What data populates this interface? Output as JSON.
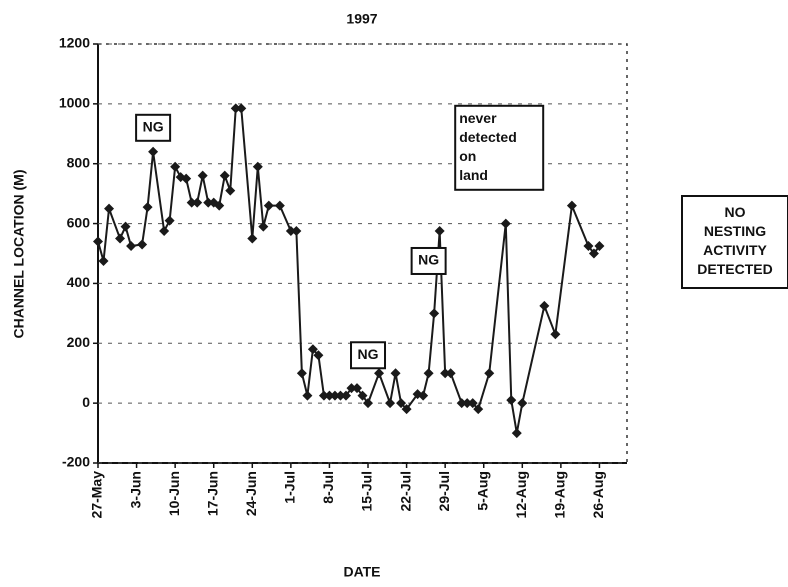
{
  "chart_data": {
    "type": "line",
    "title": "1997",
    "x_label": "DATE",
    "y_label": "CHANNEL LOCATION (M)",
    "x": [
      "27-May",
      "28-May",
      "29-May",
      "31-May",
      "1-Jun",
      "2-Jun",
      "4-Jun",
      "5-Jun",
      "6-Jun",
      "8-Jun",
      "9-Jun",
      "10-Jun",
      "11-Jun",
      "12-Jun",
      "13-Jun",
      "14-Jun",
      "15-Jun",
      "16-Jun",
      "17-Jun",
      "18-Jun",
      "19-Jun",
      "20-Jun",
      "21-Jun",
      "22-Jun",
      "24-Jun",
      "25-Jun",
      "26-Jun",
      "27-Jun",
      "29-Jun",
      "1-Jul",
      "2-Jul",
      "3-Jul",
      "4-Jul",
      "5-Jul",
      "6-Jul",
      "7-Jul",
      "8-Jul",
      "9-Jul",
      "10-Jul",
      "11-Jul",
      "12-Jul",
      "13-Jul",
      "14-Jul",
      "15-Jul",
      "17-Jul",
      "19-Jul",
      "20-Jul",
      "21-Jul",
      "22-Jul",
      "24-Jul",
      "25-Jul",
      "26-Jul",
      "27-Jul",
      "28-Jul",
      "29-Jul",
      "30-Jul",
      "1-Aug",
      "2-Aug",
      "3-Aug",
      "4-Aug",
      "6-Aug",
      "9-Aug",
      "10-Aug",
      "11-Aug",
      "12-Aug",
      "16-Aug",
      "18-Aug",
      "21-Aug",
      "24-Aug",
      "25-Aug",
      "26-Aug"
    ],
    "series": [
      {
        "color": "#1a1a1a",
        "values": [
          540,
          475,
          650,
          550,
          590,
          525,
          530,
          655,
          840,
          575,
          610,
          790,
          755,
          750,
          670,
          670,
          760,
          670,
          670,
          660,
          760,
          710,
          985,
          985,
          550,
          790,
          590,
          660,
          660,
          575,
          575,
          100,
          25,
          180,
          160,
          25,
          25,
          25,
          25,
          25,
          50,
          50,
          25,
          0,
          100,
          0,
          100,
          0,
          -20,
          30,
          25,
          100,
          300,
          575,
          100,
          100,
          0,
          0,
          0,
          -20,
          100,
          600,
          10,
          -100,
          0,
          325,
          230,
          660,
          525,
          500,
          525
        ]
      }
    ],
    "xlim": [
      "27-May",
      "31-Aug"
    ],
    "xticks": [
      "27-May",
      "3-Jun",
      "10-Jun",
      "17-Jun",
      "24-Jun",
      "1-Jul",
      "8-Jul",
      "15-Jul",
      "22-Jul",
      "29-Jul",
      "5-Aug",
      "12-Aug",
      "19-Aug",
      "26-Aug"
    ],
    "ylim": [
      -200,
      1200
    ],
    "yticks": [
      -200,
      0,
      200,
      400,
      600,
      800,
      1000,
      1200
    ],
    "grid": true,
    "annotations": [
      {
        "text": [
          "NG"
        ],
        "x": "6-Jun",
        "y": 920
      },
      {
        "text": [
          "never",
          "detected",
          "on",
          "land"
        ],
        "x": "2-Aug",
        "y": 920
      },
      {
        "text": [
          "NG"
        ],
        "x": "26-Jul",
        "y": 475
      },
      {
        "text": [
          "NG"
        ],
        "x": "15-Jul",
        "y": 160
      },
      {
        "text": [
          "NO",
          "NESTING",
          "ACTIVITY",
          "DETECTED"
        ],
        "outside": true
      }
    ]
  }
}
